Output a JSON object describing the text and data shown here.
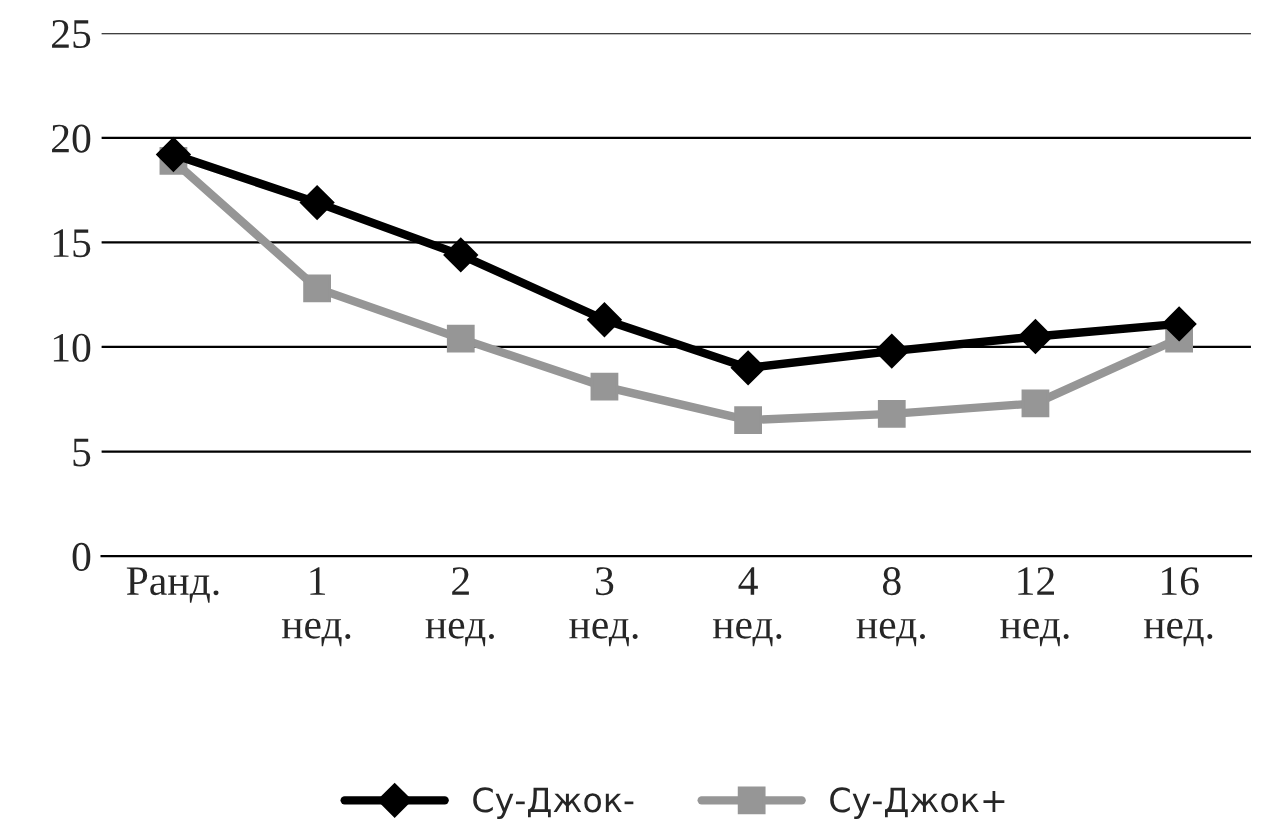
{
  "chart_data": {
    "type": "line",
    "categories": [
      "Ранд.",
      "1\nнед.",
      "2\nнед.",
      "3\nнед.",
      "4\nнед.",
      "8\nнед.",
      "12\nнед.",
      "16\nнед."
    ],
    "series": [
      {
        "name": "Су-Джок-",
        "color": "#000000",
        "marker": "diamond",
        "values": [
          19.2,
          16.9,
          14.4,
          11.3,
          9.0,
          9.8,
          10.5,
          11.1
        ]
      },
      {
        "name": "Су-Джок+",
        "color": "#969696",
        "marker": "square",
        "values": [
          18.9,
          12.8,
          10.4,
          8.1,
          6.5,
          6.8,
          7.3,
          10.4
        ]
      }
    ],
    "ylim": [
      0,
      25
    ],
    "yticks": [
      0,
      5,
      10,
      15,
      20,
      25
    ],
    "grid": "y",
    "legend": "bottom",
    "line_style": "solid"
  }
}
